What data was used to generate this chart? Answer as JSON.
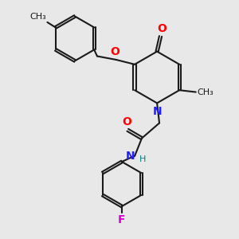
{
  "bg_color": "#e8e8e8",
  "bond_color": "#1a1a1a",
  "bond_width": 1.5,
  "atom_colors": {
    "N": "#2020ff",
    "O": "#ff0000",
    "F": "#dd00dd",
    "H": "#008080"
  },
  "font_size": 9.5
}
